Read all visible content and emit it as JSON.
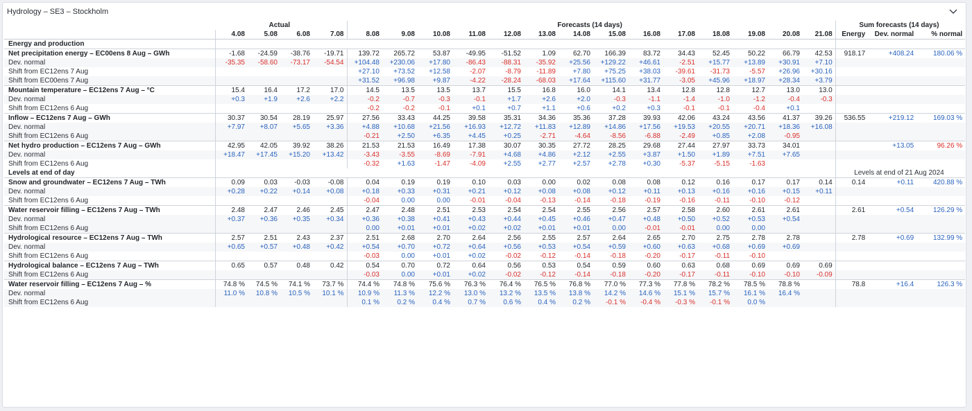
{
  "panel": {
    "title": "Hydrology – SE3 – Stockholm",
    "collapse_icon": "chevron-down-icon"
  },
  "colors": {
    "negative": "#d9302b",
    "positive": "#2a63bd",
    "border": "#cfd4da"
  },
  "header": {
    "group_actual": "Actual",
    "group_forecast": "Forecasts (14 days)",
    "group_sum": "Sum forecasts (14 days)",
    "dates": [
      "4.08",
      "5.08",
      "6.08",
      "7.08",
      "8.08",
      "9.08",
      "10.08",
      "11.08",
      "12.08",
      "13.08",
      "14.08",
      "15.08",
      "16.08",
      "17.08",
      "18.08",
      "19.08",
      "20.08",
      "21.08"
    ],
    "sum_cols": [
      "Energy",
      "Dev. normal",
      "% normal"
    ]
  },
  "rows": [
    {
      "type": "section",
      "label": "Energy and production"
    },
    {
      "type": "main",
      "label": "Net precipitation energy – EC00ens 8 Aug – GWh",
      "values": [
        "-1.68",
        "-24.59",
        "-38.76",
        "-19.71",
        "139.72",
        "265.72",
        "53.87",
        "-49.95",
        "-51.52",
        "1.09",
        "62.70",
        "166.39",
        "83.72",
        "34.43",
        "52.45",
        "50.22",
        "66.79",
        "42.53"
      ],
      "sum": [
        "918.17",
        "+408.24",
        "180.06 %"
      ]
    },
    {
      "type": "sub",
      "label": "Dev. normal",
      "values": [
        "-35.35",
        "-58.60",
        "-73.17",
        "-54.54",
        "+104.48",
        "+230.06",
        "+17.80",
        "-86.43",
        "-88.31",
        "-35.92",
        "+25.56",
        "+129.22",
        "+46.61",
        "-2.51",
        "+15.77",
        "+13.89",
        "+30.91",
        "+7.10"
      ]
    },
    {
      "type": "sub",
      "label": "Shift from EC12ens 7 Aug",
      "values": [
        "",
        "",
        "",
        "",
        "+27.10",
        "+73.52",
        "+12.58",
        "-2.07",
        "-8.79",
        "-11.89",
        "+7.80",
        "+75.25",
        "+38.03",
        "-39.61",
        "-31.73",
        "-5.57",
        "+26.96",
        "+30.16"
      ]
    },
    {
      "type": "sub",
      "label": "Shift from EC00ens 7 Aug",
      "values": [
        "",
        "",
        "",
        "",
        "+31.52",
        "+96.98",
        "+9.87",
        "-4.22",
        "-28.24",
        "-68.03",
        "+17.64",
        "+115.60",
        "+31.77",
        "-3.05",
        "+45.96",
        "+18.97",
        "+28.34",
        "+3.79"
      ]
    },
    {
      "type": "main",
      "label": "Mountain temperature – EC12ens 7 Aug – °C",
      "values": [
        "15.4",
        "16.4",
        "17.2",
        "17.0",
        "14.5",
        "13.5",
        "13.5",
        "13.7",
        "15.5",
        "16.8",
        "16.0",
        "14.1",
        "13.4",
        "12.8",
        "12.8",
        "12.7",
        "13.0",
        "13.0"
      ]
    },
    {
      "type": "sub",
      "label": "Dev. normal",
      "values": [
        "+0.3",
        "+1.9",
        "+2.6",
        "+2.2",
        "-0.2",
        "-0.7",
        "-0.3",
        "-0.1",
        "+1.7",
        "+2.6",
        "+2.0",
        "-0.3",
        "-1.1",
        "-1.4",
        "-1.0",
        "-1.2",
        "-0.4",
        "-0.3"
      ]
    },
    {
      "type": "sub",
      "label": "Shift from EC12ens 6 Aug",
      "values": [
        "",
        "",
        "",
        "",
        "-0.2",
        "-0.2",
        "-0.1",
        "+0.1",
        "+0.7",
        "+1.1",
        "+0.6",
        "+0.2",
        "+0.3",
        "-0.1",
        "-0.1",
        "-0.4",
        "+0.1",
        ""
      ]
    },
    {
      "type": "main",
      "label": "Inflow – EC12ens 7 Aug – GWh",
      "values": [
        "30.37",
        "30.54",
        "28.19",
        "25.97",
        "27.56",
        "33.43",
        "44.25",
        "39.58",
        "35.31",
        "34.36",
        "35.36",
        "37.28",
        "39.93",
        "42.06",
        "43.24",
        "43.56",
        "41.37",
        "39.26"
      ],
      "sum": [
        "536.55",
        "+219.12",
        "169.03 %"
      ]
    },
    {
      "type": "sub",
      "label": "Dev. normal",
      "values": [
        "+7.97",
        "+8.07",
        "+5.65",
        "+3.36",
        "+4.88",
        "+10.68",
        "+21.56",
        "+16.93",
        "+12.72",
        "+11.83",
        "+12.89",
        "+14.86",
        "+17.56",
        "+19.53",
        "+20.55",
        "+20.71",
        "+18.36",
        "+16.08"
      ]
    },
    {
      "type": "sub",
      "label": "Shift from EC12ens 6 Aug",
      "values": [
        "",
        "",
        "",
        "",
        "-0.21",
        "+2.50",
        "+6.35",
        "+4.45",
        "+0.25",
        "-2.71",
        "-4.64",
        "-8.56",
        "-6.88",
        "-2.49",
        "+0.85",
        "+2.08",
        "-0.95",
        ""
      ]
    },
    {
      "type": "main",
      "label": "Net hydro production – EC12ens 7 Aug – GWh",
      "values": [
        "42.95",
        "42.05",
        "39.92",
        "38.26",
        "21.53",
        "21.53",
        "16.49",
        "17.38",
        "30.07",
        "30.35",
        "27.72",
        "28.25",
        "29.68",
        "27.44",
        "27.97",
        "33.73",
        "34.01",
        ""
      ],
      "sum": [
        "",
        "+13.05",
        "96.26 %"
      ]
    },
    {
      "type": "sub",
      "label": "Dev. normal",
      "values": [
        "+18.47",
        "+17.45",
        "+15.20",
        "+13.42",
        "-3.43",
        "-3.55",
        "-8.69",
        "-7.91",
        "+4.68",
        "+4.86",
        "+2.12",
        "+2.55",
        "+3.87",
        "+1.50",
        "+1.89",
        "+7.51",
        "+7.65",
        ""
      ]
    },
    {
      "type": "sub",
      "label": "Shift from EC12ens 6 Aug",
      "values": [
        "",
        "",
        "",
        "",
        "-0.32",
        "+1.63",
        "-1.47",
        "-4.09",
        "+2.55",
        "+2.77",
        "+2.57",
        "+2.78",
        "+0.30",
        "-5.37",
        "-5.15",
        "-1.63",
        "",
        ""
      ]
    },
    {
      "type": "section",
      "label": "Levels at end of day",
      "note": "Levels at end of 21 Aug 2024"
    },
    {
      "type": "main",
      "label": "Snow and groundwater – EC12ens 7 Aug – TWh",
      "values": [
        "0.09",
        "0.03",
        "-0.03",
        "-0.08",
        "0.04",
        "0.19",
        "0.19",
        "0.10",
        "0.03",
        "0.00",
        "0.02",
        "0.08",
        "0.08",
        "0.12",
        "0.16",
        "0.17",
        "0.17",
        "0.14"
      ],
      "sum": [
        "0.14",
        "+0.11",
        "420.88 %"
      ]
    },
    {
      "type": "sub",
      "label": "Dev. normal",
      "values": [
        "+0.28",
        "+0.22",
        "+0.14",
        "+0.08",
        "+0.18",
        "+0.33",
        "+0.31",
        "+0.21",
        "+0.12",
        "+0.08",
        "+0.08",
        "+0.12",
        "+0.11",
        "+0.13",
        "+0.16",
        "+0.16",
        "+0.15",
        "+0.11"
      ]
    },
    {
      "type": "sub",
      "label": "Shift from EC12ens 6 Aug",
      "values": [
        "",
        "",
        "",
        "",
        "-0.04",
        "0.00",
        "0.00",
        "-0.01",
        "-0.04",
        "-0.13",
        "-0.14",
        "-0.18",
        "-0.19",
        "-0.16",
        "-0.11",
        "-0.10",
        "-0.12",
        ""
      ]
    },
    {
      "type": "main",
      "label": "Water reservoir filling – EC12ens 7 Aug – TWh",
      "values": [
        "2.48",
        "2.47",
        "2.46",
        "2.45",
        "2.47",
        "2.48",
        "2.51",
        "2.53",
        "2.54",
        "2.54",
        "2.55",
        "2.56",
        "2.57",
        "2.58",
        "2.60",
        "2.61",
        "2.61",
        ""
      ],
      "sum": [
        "2.61",
        "+0.54",
        "126.29 %"
      ]
    },
    {
      "type": "sub",
      "label": "Dev. normal",
      "values": [
        "+0.37",
        "+0.36",
        "+0.35",
        "+0.34",
        "+0.36",
        "+0.38",
        "+0.41",
        "+0.43",
        "+0.44",
        "+0.45",
        "+0.46",
        "+0.47",
        "+0.48",
        "+0.50",
        "+0.52",
        "+0.53",
        "+0.54",
        ""
      ]
    },
    {
      "type": "sub",
      "label": "Shift from EC12ens 6 Aug",
      "values": [
        "",
        "",
        "",
        "",
        "0.00",
        "+0.01",
        "+0.01",
        "+0.02",
        "+0.02",
        "+0.01",
        "+0.01",
        "0.00",
        "-0.01",
        "-0.01",
        "0.00",
        "0.00",
        "",
        ""
      ]
    },
    {
      "type": "main",
      "label": "Hydrological resource – EC12ens 7 Aug – TWh",
      "values": [
        "2.57",
        "2.51",
        "2.43",
        "2.37",
        "2.51",
        "2.68",
        "2.70",
        "2.64",
        "2.56",
        "2.55",
        "2.57",
        "2.64",
        "2.65",
        "2.70",
        "2.75",
        "2.78",
        "2.78",
        ""
      ],
      "sum": [
        "2.78",
        "+0.69",
        "132.99 %"
      ]
    },
    {
      "type": "sub",
      "label": "Dev. normal",
      "values": [
        "+0.65",
        "+0.57",
        "+0.48",
        "+0.42",
        "+0.54",
        "+0.70",
        "+0.72",
        "+0.64",
        "+0.56",
        "+0.53",
        "+0.54",
        "+0.59",
        "+0.60",
        "+0.63",
        "+0.68",
        "+0.69",
        "+0.69",
        ""
      ]
    },
    {
      "type": "sub",
      "label": "Shift from EC12ens 6 Aug",
      "values": [
        "",
        "",
        "",
        "",
        "-0.03",
        "0.00",
        "+0.01",
        "+0.02",
        "-0.02",
        "-0.12",
        "-0.14",
        "-0.18",
        "-0.20",
        "-0.17",
        "-0.11",
        "-0.10",
        "",
        ""
      ]
    },
    {
      "type": "main",
      "label": "Hydrological balance – EC12ens 7 Aug – TWh",
      "values": [
        "0.65",
        "0.57",
        "0.48",
        "0.42",
        "0.54",
        "0.70",
        "0.72",
        "0.64",
        "0.56",
        "0.53",
        "0.54",
        "0.59",
        "0.60",
        "0.63",
        "0.68",
        "0.69",
        "0.69",
        "0.69"
      ]
    },
    {
      "type": "sub",
      "label": "Shift from EC12ens 6 Aug",
      "values": [
        "",
        "",
        "",
        "",
        "-0.03",
        "0.00",
        "+0.01",
        "+0.02",
        "-0.02",
        "-0.12",
        "-0.14",
        "-0.18",
        "-0.20",
        "-0.17",
        "-0.11",
        "-0.10",
        "-0.10",
        "-0.09"
      ]
    },
    {
      "type": "main",
      "label": "Water reservoir filling – EC12ens 7 Aug – %",
      "values": [
        "74.8 %",
        "74.5 %",
        "74.1 %",
        "73.7 %",
        "74.4 %",
        "74.8 %",
        "75.6 %",
        "76.3 %",
        "76.4 %",
        "76.5 %",
        "76.8 %",
        "77.0 %",
        "77.3 %",
        "77.8 %",
        "78.2 %",
        "78.5 %",
        "78.8 %",
        ""
      ],
      "sum": [
        "78.8",
        "+16.4",
        "126.3 %"
      ]
    },
    {
      "type": "sub",
      "label": "Dev. normal",
      "values": [
        "11.0 %",
        "10.8 %",
        "10.5 %",
        "10.1 %",
        "10.9 %",
        "11.3 %",
        "12.2 %",
        "13.0 %",
        "13.2 %",
        "13.5 %",
        "13.8 %",
        "14.2 %",
        "14.6 %",
        "15.1 %",
        "15.7 %",
        "16.1 %",
        "16.4 %",
        ""
      ],
      "tone": "pos"
    },
    {
      "type": "sub",
      "label": "Shift from EC12ens 6 Aug",
      "values": [
        "",
        "",
        "",
        "",
        "0.1 %",
        "0.2 %",
        "0.4 %",
        "0.7 %",
        "0.6 %",
        "0.4 %",
        "0.2 %",
        "-0.1 %",
        "-0.4 %",
        "-0.3 %",
        "-0.1 %",
        "0.0 %",
        "",
        ""
      ]
    }
  ]
}
